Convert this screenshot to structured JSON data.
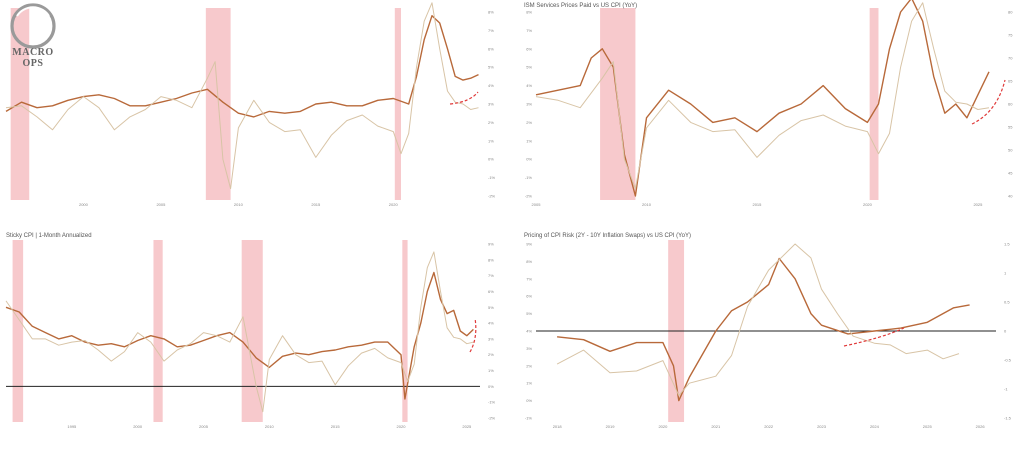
{
  "colors": {
    "primary": "#b8693a",
    "secondary": "#d8c4a6",
    "recession": "#f7c9cc",
    "zero_line": "#222222",
    "trend_arrow": "#e03a3a"
  },
  "logo": {
    "text": "MACRO OPS",
    "sub": ""
  },
  "chart_data": [
    {
      "type": "line",
      "title": "",
      "x_ticks": [
        "2000",
        "2005",
        "2010",
        "2015",
        "2020"
      ],
      "left_ticks": [],
      "right_ticks": [
        "8%",
        "7%",
        "6%",
        "5%",
        "4%",
        "3%",
        "2%",
        "1%",
        "0%",
        "-1%",
        "-2%"
      ],
      "xlim": [
        1995,
        2025.6
      ],
      "recessions": [
        [
          1995.3,
          1996.5
        ],
        [
          2007.9,
          2009.5
        ],
        [
          2020.1,
          2020.5
        ]
      ],
      "hline": null,
      "series": [
        {
          "name": "",
          "color_key": "primary",
          "axis": "right",
          "x": [
            1995,
            1996,
            1997,
            1998,
            1999,
            2000,
            2001,
            2002,
            2003,
            2004,
            2005,
            2006,
            2007,
            2008,
            2009,
            2010,
            2011,
            2012,
            2013,
            2014,
            2015,
            2016,
            2017,
            2018,
            2019,
            2020,
            2021,
            2021.5,
            2022,
            2022.5,
            2023,
            2023.5,
            2024,
            2024.5,
            2025,
            2025.5
          ],
          "y": [
            2.6,
            3.1,
            2.8,
            2.9,
            3.2,
            3.4,
            3.5,
            3.3,
            2.9,
            2.9,
            3.1,
            3.3,
            3.6,
            3.8,
            3.1,
            2.5,
            2.3,
            2.6,
            2.5,
            2.6,
            3.0,
            3.1,
            2.9,
            2.9,
            3.2,
            3.3,
            3.0,
            4.5,
            6.5,
            7.8,
            7.4,
            6.0,
            4.5,
            4.3,
            4.4,
            4.6
          ]
        },
        {
          "name": "",
          "color_key": "secondary",
          "axis": "right",
          "x": [
            1995,
            1996,
            1997,
            1998,
            1999,
            2000,
            2001,
            2002,
            2003,
            2004,
            2005,
            2006,
            2007,
            2008,
            2008.5,
            2009,
            2009.5,
            2010,
            2011,
            2012,
            2013,
            2014,
            2015,
            2016,
            2017,
            2018,
            2019,
            2020,
            2020.5,
            2021,
            2021.5,
            2022,
            2022.5,
            2023,
            2023.5,
            2024,
            2024.5,
            2025,
            2025.5
          ],
          "y": [
            2.8,
            2.9,
            2.3,
            1.6,
            2.7,
            3.4,
            2.8,
            1.6,
            2.3,
            2.7,
            3.4,
            3.2,
            2.8,
            4.4,
            5.3,
            0.0,
            -1.6,
            1.7,
            3.2,
            2.0,
            1.5,
            1.6,
            0.1,
            1.3,
            2.1,
            2.4,
            1.8,
            1.5,
            0.3,
            1.4,
            5.0,
            7.5,
            8.5,
            6.0,
            3.7,
            3.1,
            3.0,
            2.7,
            2.8
          ]
        }
      ]
    },
    {
      "type": "line",
      "title": "ISM Services Prices Paid vs US CPI (YoY)",
      "x_ticks": [
        "2005",
        "2010",
        "2015",
        "2020",
        "2025"
      ],
      "left_ticks": [
        "8%",
        "7%",
        "6%",
        "5%",
        "4%",
        "3%",
        "2%",
        "1%",
        "0%",
        "-1%",
        "-2%"
      ],
      "right_ticks": [
        "80",
        "75",
        "70",
        "65",
        "60",
        "55",
        "50",
        "45",
        "40"
      ],
      "xlim": [
        2005,
        2026
      ],
      "recessions": [
        [
          2007.9,
          2009.5
        ],
        [
          2020.1,
          2020.5
        ]
      ],
      "hline": null,
      "series": [
        {
          "name": "",
          "color_key": "primary",
          "axis": "right",
          "x": [
            2005,
            2006,
            2007,
            2007.5,
            2008,
            2008.5,
            2009,
            2009.5,
            2010,
            2011,
            2012,
            2013,
            2014,
            2015,
            2016,
            2017,
            2018,
            2019,
            2020,
            2020.5,
            2021,
            2021.5,
            2022,
            2022.5,
            2023,
            2023.5,
            2024,
            2024.5,
            2025,
            2025.5
          ],
          "y": [
            62,
            63,
            64,
            70,
            72,
            68,
            49,
            40,
            57,
            63,
            60,
            56,
            57,
            54,
            58,
            60,
            64,
            59,
            56,
            60,
            72,
            80,
            83,
            78,
            66,
            58,
            60,
            57,
            62,
            67
          ]
        },
        {
          "name": "",
          "color_key": "secondary",
          "axis": "left",
          "x": [
            2005,
            2006,
            2007,
            2008,
            2008.5,
            2009,
            2009.5,
            2010,
            2011,
            2012,
            2013,
            2014,
            2015,
            2016,
            2017,
            2018,
            2019,
            2020,
            2020.5,
            2021,
            2021.5,
            2022,
            2022.5,
            2023,
            2023.5,
            2024,
            2024.5,
            2025,
            2025.5
          ],
          "y": [
            3.4,
            3.2,
            2.8,
            4.4,
            5.3,
            0.0,
            -1.6,
            1.7,
            3.2,
            2.0,
            1.5,
            1.6,
            0.1,
            1.3,
            2.1,
            2.4,
            1.8,
            1.5,
            0.3,
            1.4,
            5.0,
            7.5,
            8.5,
            6.0,
            3.7,
            3.1,
            3.0,
            2.7,
            2.8
          ]
        }
      ]
    },
    {
      "type": "line",
      "title": "Sticky CPI | 1-Month Annualized",
      "x_ticks": [
        "1995",
        "2000",
        "2005",
        "2010",
        "2015",
        "2020",
        "2025"
      ],
      "left_ticks": [],
      "right_ticks": [
        "9%",
        "8%",
        "7%",
        "6%",
        "5%",
        "4%",
        "3%",
        "2%",
        "1%",
        "0%",
        "-1%",
        "-2%"
      ],
      "xlim": [
        1990,
        2026
      ],
      "recessions": [
        [
          1990.5,
          1991.3
        ],
        [
          2001.2,
          2001.9
        ],
        [
          2007.9,
          2009.5
        ],
        [
          2020.1,
          2020.5
        ]
      ],
      "hline": 0,
      "series": [
        {
          "name": "",
          "color_key": "primary",
          "axis": "right",
          "x": [
            1990,
            1991,
            1992,
            1993,
            1994,
            1995,
            1996,
            1997,
            1998,
            1999,
            2000,
            2001,
            2002,
            2003,
            2004,
            2005,
            2006,
            2007,
            2008,
            2009,
            2010,
            2011,
            2012,
            2013,
            2014,
            2015,
            2016,
            2017,
            2018,
            2019,
            2020,
            2020.3,
            2021,
            2021.5,
            2022,
            2022.5,
            2023,
            2023.5,
            2024,
            2024.5,
            2025,
            2025.5
          ],
          "y": [
            5.0,
            4.7,
            3.8,
            3.4,
            3.0,
            3.2,
            2.8,
            2.6,
            2.7,
            2.5,
            2.9,
            3.2,
            3.0,
            2.5,
            2.6,
            2.9,
            3.2,
            3.4,
            2.8,
            1.8,
            1.2,
            1.9,
            2.1,
            2.0,
            2.2,
            2.3,
            2.5,
            2.6,
            2.8,
            2.8,
            2.0,
            -0.8,
            2.5,
            4.0,
            6.0,
            7.2,
            5.5,
            4.6,
            4.8,
            3.5,
            3.2,
            3.6
          ]
        },
        {
          "name": "",
          "color_key": "secondary",
          "axis": "right",
          "x": [
            1990,
            1991,
            1992,
            1993,
            1994,
            1995,
            1996,
            1997,
            1998,
            1999,
            2000,
            2001,
            2002,
            2003,
            2004,
            2005,
            2006,
            2007,
            2008,
            2009,
            2009.5,
            2010,
            2011,
            2012,
            2013,
            2014,
            2015,
            2016,
            2017,
            2018,
            2019,
            2020,
            2020.5,
            2021,
            2021.5,
            2022,
            2022.5,
            2023,
            2023.5,
            2024,
            2024.5,
            2025,
            2025.5
          ],
          "y": [
            5.4,
            4.2,
            3.0,
            3.0,
            2.6,
            2.8,
            2.9,
            2.3,
            1.6,
            2.2,
            3.4,
            2.8,
            1.6,
            2.3,
            2.7,
            3.4,
            3.2,
            2.8,
            4.4,
            0.0,
            -1.6,
            1.7,
            3.2,
            2.0,
            1.5,
            1.6,
            0.1,
            1.3,
            2.1,
            2.4,
            1.8,
            1.5,
            0.3,
            1.4,
            5.0,
            7.5,
            8.5,
            6.0,
            3.7,
            3.1,
            3.0,
            2.7,
            2.8
          ]
        }
      ]
    },
    {
      "type": "line",
      "title": "Pricing of CPI Risk (2Y - 10Y Inflation Swaps) vs US CPI (YoY)",
      "x_ticks": [
        "2018",
        "2019",
        "2020",
        "2021",
        "2022",
        "2023",
        "2024",
        "2025",
        "2026"
      ],
      "left_ticks": [
        "9%",
        "8%",
        "7%",
        "6%",
        "5%",
        "4%",
        "3%",
        "2%",
        "1%",
        "0%",
        "-1%"
      ],
      "right_ticks": [
        "1.5",
        "1",
        "0.5",
        "0",
        "-0.5",
        "-1",
        "-1.5"
      ],
      "xlim": [
        2017.6,
        2026.3
      ],
      "recessions": [
        [
          2020.1,
          2020.4
        ]
      ],
      "hline": 0,
      "series": [
        {
          "name": "",
          "color_key": "primary",
          "axis": "right",
          "x": [
            2018,
            2018.5,
            2019,
            2019.5,
            2020,
            2020.2,
            2020.3,
            2020.5,
            2021,
            2021.3,
            2021.6,
            2022,
            2022.2,
            2022.5,
            2022.8,
            2023,
            2023.5,
            2024,
            2024.5,
            2025,
            2025.5,
            2025.8
          ],
          "y": [
            -0.1,
            -0.15,
            -0.35,
            -0.2,
            -0.2,
            -0.6,
            -1.2,
            -0.8,
            0.0,
            0.35,
            0.5,
            0.8,
            1.25,
            0.9,
            0.3,
            0.1,
            -0.05,
            0.0,
            0.05,
            0.15,
            0.4,
            0.45
          ]
        },
        {
          "name": "",
          "color_key": "secondary",
          "axis": "left",
          "x": [
            2018,
            2018.5,
            2019,
            2019.5,
            2020,
            2020.3,
            2020.5,
            2021,
            2021.3,
            2021.6,
            2022,
            2022.5,
            2022.8,
            2023,
            2023.3,
            2023.6,
            2024,
            2024.3,
            2024.6,
            2025,
            2025.3,
            2025.6
          ],
          "y": [
            2.1,
            2.9,
            1.6,
            1.7,
            2.3,
            0.3,
            1.0,
            1.4,
            2.6,
            5.4,
            7.5,
            9.0,
            8.2,
            6.4,
            5.0,
            3.7,
            3.3,
            3.2,
            2.7,
            2.9,
            2.4,
            2.7
          ]
        }
      ]
    }
  ]
}
